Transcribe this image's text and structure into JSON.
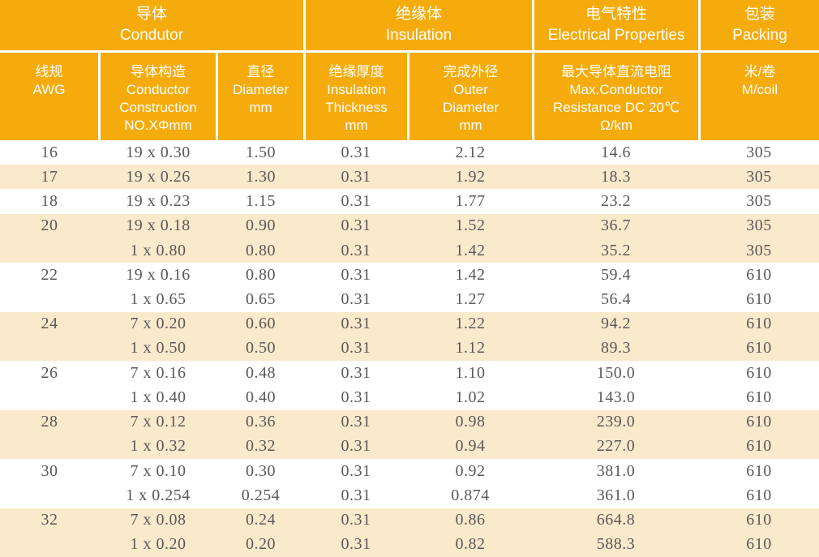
{
  "colors": {
    "header_bg": "#F6AB0D",
    "stripe_bg": "#FBE9CC",
    "header_text": "#FFFFFF",
    "body_text": "#5B5757",
    "divider": "#FFFFFF"
  },
  "table": {
    "header_groups": [
      {
        "zh": "导体",
        "en": "Condutor"
      },
      {
        "zh": "绝缘体",
        "en": "Insulation"
      },
      {
        "zh": "电气特性",
        "en": "Electrical Properties"
      },
      {
        "zh": "包装",
        "en": "Packing"
      }
    ],
    "columns": [
      {
        "lines": [
          "线规",
          "AWG"
        ]
      },
      {
        "lines": [
          "导体构造",
          "Conductor",
          "Construction",
          "NO.XΦmm"
        ]
      },
      {
        "lines": [
          "直径",
          "Diameter",
          "mm"
        ]
      },
      {
        "lines": [
          "绝缘厚度",
          "Insulation",
          "Thickness",
          "mm"
        ]
      },
      {
        "lines": [
          "完成外径",
          "Outer",
          "Diameter",
          "mm"
        ]
      },
      {
        "lines": [
          "最大导体直流电阻",
          "Max.Conductor",
          "Resistance DC 20℃",
          "Ω/km"
        ]
      },
      {
        "lines": [
          "米/卷",
          "M/coil"
        ]
      }
    ],
    "rows": [
      {
        "cells": [
          "16",
          "19 x 0.30",
          "1.50",
          "0.31",
          "2.12",
          "14.6",
          "305"
        ],
        "shaded": false
      },
      {
        "cells": [
          "17",
          "19 x 0.26",
          "1.30",
          "0.31",
          "1.92",
          "18.3",
          "305"
        ],
        "shaded": true
      },
      {
        "cells": [
          "18",
          "19 x 0.23",
          "1.15",
          "0.31",
          "1.77",
          "23.2",
          "305"
        ],
        "shaded": false
      },
      {
        "cells": [
          "20",
          "19 x 0.18",
          "0.90",
          "0.31",
          "1.52",
          "36.7",
          "305"
        ],
        "shaded": true
      },
      {
        "cells": [
          "",
          "1 x 0.80",
          "0.80",
          "0.31",
          "1.42",
          "35.2",
          "305"
        ],
        "shaded": true
      },
      {
        "cells": [
          "22",
          "19 x 0.16",
          "0.80",
          "0.31",
          "1.42",
          "59.4",
          "610"
        ],
        "shaded": false
      },
      {
        "cells": [
          "",
          "1 x 0.65",
          "0.65",
          "0.31",
          "1.27",
          "56.4",
          "610"
        ],
        "shaded": false
      },
      {
        "cells": [
          "24",
          "7 x 0.20",
          "0.60",
          "0.31",
          "1.22",
          "94.2",
          "610"
        ],
        "shaded": true
      },
      {
        "cells": [
          "",
          "1 x 0.50",
          "0.50",
          "0.31",
          "1.12",
          "89.3",
          "610"
        ],
        "shaded": true
      },
      {
        "cells": [
          "26",
          "7 x 0.16",
          "0.48",
          "0.31",
          "1.10",
          "150.0",
          "610"
        ],
        "shaded": false
      },
      {
        "cells": [
          "",
          "1 x 0.40",
          "0.40",
          "0.31",
          "1.02",
          "143.0",
          "610"
        ],
        "shaded": false
      },
      {
        "cells": [
          "28",
          "7 x 0.12",
          "0.36",
          "0.31",
          "0.98",
          "239.0",
          "610"
        ],
        "shaded": true
      },
      {
        "cells": [
          "",
          "1 x 0.32",
          "0.32",
          "0.31",
          "0.94",
          "227.0",
          "610"
        ],
        "shaded": true
      },
      {
        "cells": [
          "30",
          "7 x 0.10",
          "0.30",
          "0.31",
          "0.92",
          "381.0",
          "610"
        ],
        "shaded": false
      },
      {
        "cells": [
          "",
          "1 x 0.254",
          "0.254",
          "0.31",
          "0.874",
          "361.0",
          "610"
        ],
        "shaded": false
      },
      {
        "cells": [
          "32",
          "7 x 0.08",
          "0.24",
          "0.31",
          "0.86",
          "664.8",
          "610"
        ],
        "shaded": true
      },
      {
        "cells": [
          "",
          "1 x 0.20",
          "0.20",
          "0.31",
          "0.82",
          "588.3",
          "610"
        ],
        "shaded": true
      }
    ]
  }
}
